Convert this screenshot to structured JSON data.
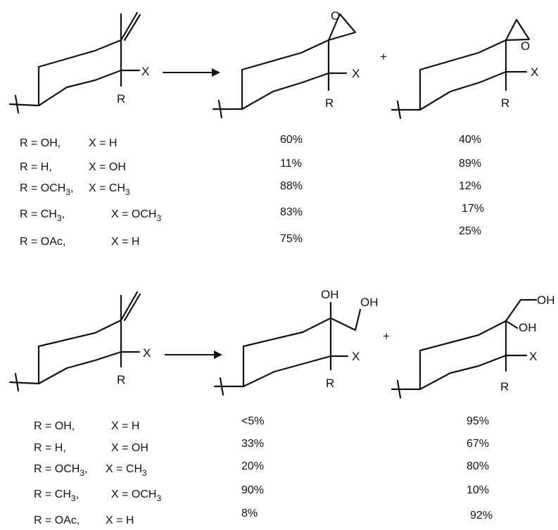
{
  "labels": {
    "X": "X",
    "R": "R",
    "O": "O",
    "OH": "OH",
    "plus": "+"
  },
  "scheme1": {
    "rows": [
      {
        "r": "R = OH,",
        "x": "X = H",
        "p1": "60%",
        "p2": "40%"
      },
      {
        "r": "R = H,",
        "x": "X = OH",
        "p1": "11%",
        "p2": "89%"
      },
      {
        "r": "R = OCH",
        "r_sub": "3",
        "r_tail": ",",
        "x": "X = CH",
        "x_sub": "3",
        "p1": "88%",
        "p2": "12%"
      },
      {
        "r": "R = CH",
        "r_sub": "3",
        "r_tail": ",",
        "x": "X = OCH",
        "x_sub": "3",
        "p1": "83%",
        "p2": "17%"
      },
      {
        "r": "R = OAc,",
        "x": "X = H",
        "p1": "75%",
        "p2": "25%"
      }
    ]
  },
  "scheme2": {
    "rows": [
      {
        "r": "R = OH,",
        "x": "X = H",
        "p1": "<5%",
        "p2": "95%"
      },
      {
        "r": "R = H,",
        "x": "X = OH",
        "p1": "33%",
        "p2": "67%"
      },
      {
        "r": "R = OCH",
        "r_sub": "3",
        "r_tail": ",",
        "x": "X = CH",
        "x_sub": "3",
        "p1": "20%",
        "p2": "80%"
      },
      {
        "r": "R = CH",
        "r_sub": "3",
        "r_tail": ",",
        "x": "X = OCH",
        "x_sub": "3",
        "p1": "90%",
        "p2": "10%"
      },
      {
        "r": "R = OAc,",
        "x": "X = H",
        "p1": "8%",
        "p2": "92%"
      }
    ]
  }
}
